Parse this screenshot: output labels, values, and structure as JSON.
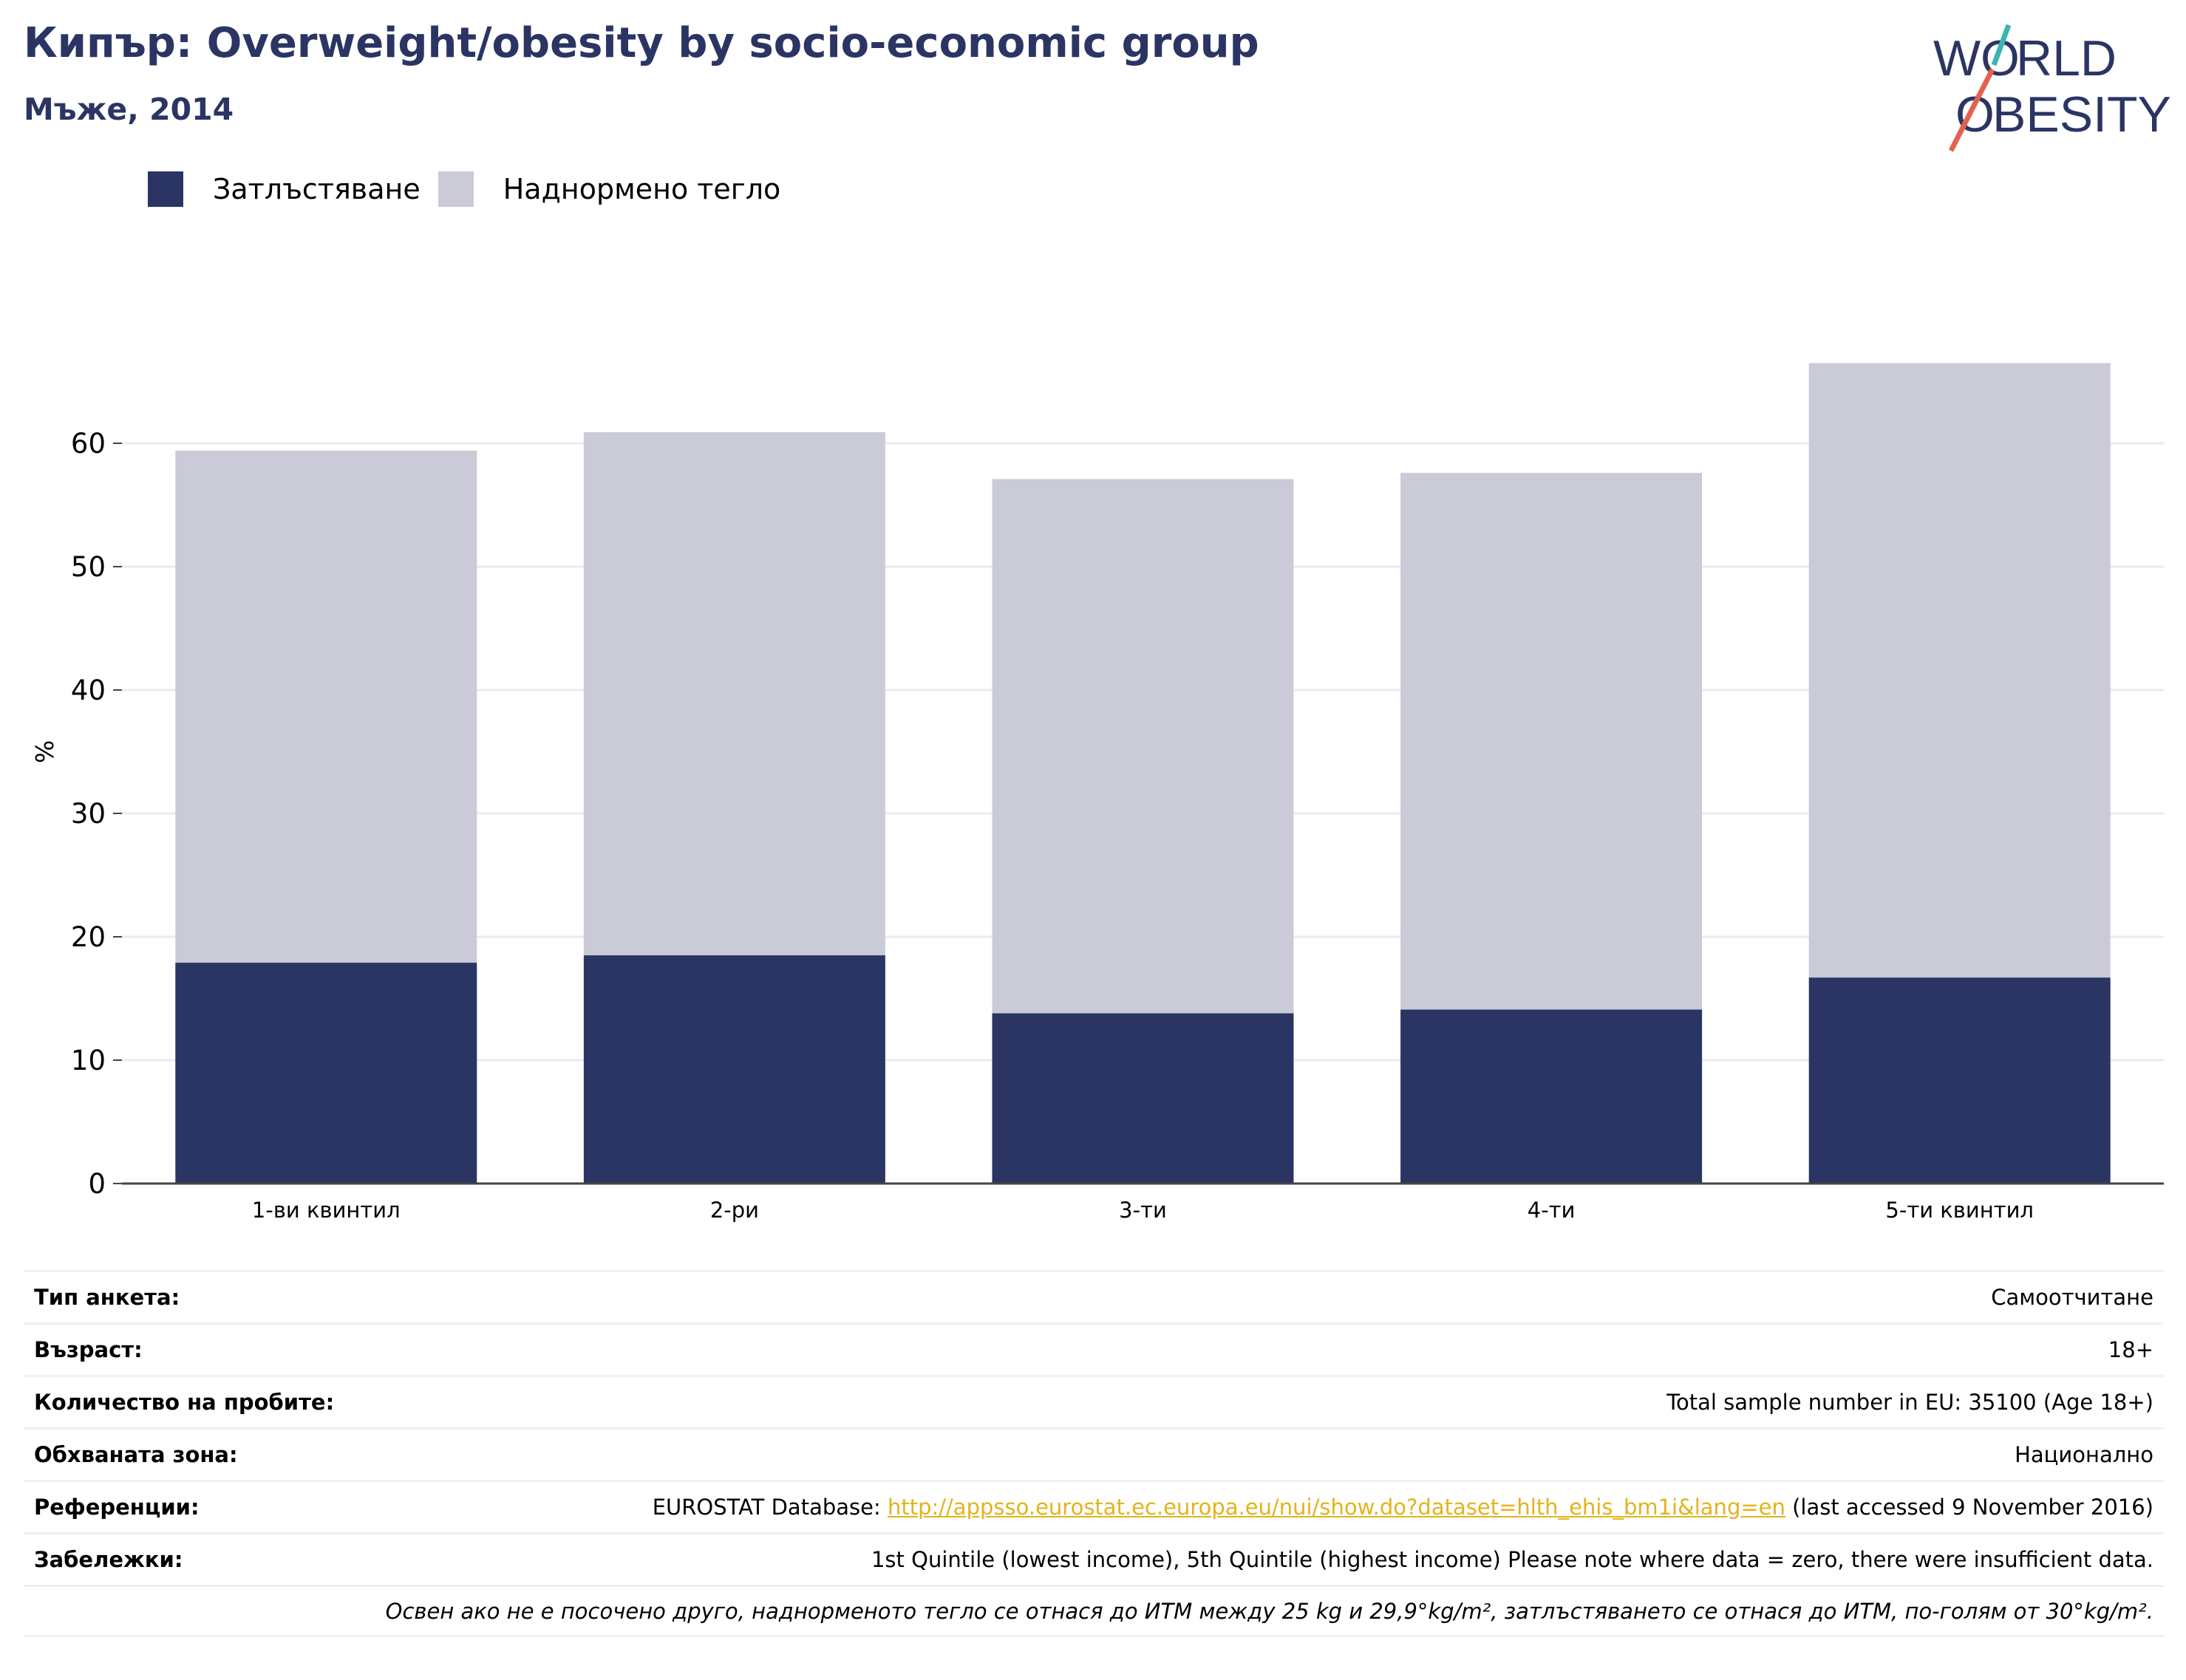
{
  "header": {
    "title": "Кипър: Overweight/obesity by socio-economic group",
    "subtitle": "Мъже, 2014"
  },
  "logo": {
    "line1": "WORLD",
    "line2": "OBESITY"
  },
  "colors": {
    "obesity": "#2b3564",
    "overweight": "#cacbd7",
    "accent_teal": "#3ab3b3",
    "accent_red": "#e2624f",
    "link": "#e3b31b"
  },
  "chart_data": {
    "type": "bar",
    "stacked": true,
    "categories": [
      "1-ви квинтил",
      "2-ри",
      "3-ти",
      "4-ти",
      "5-ти квинтил"
    ],
    "series": [
      {
        "name": "Затлъстяване",
        "values": [
          17.9,
          18.5,
          13.8,
          14.1,
          16.7
        ]
      },
      {
        "name": "Наднормено тегло",
        "values": [
          41.5,
          42.4,
          43.3,
          43.5,
          49.8
        ]
      }
    ],
    "totals": [
      59.4,
      60.9,
      57.1,
      57.6,
      66.5
    ],
    "ylabel": "%",
    "yticks": [
      0,
      10,
      20,
      30,
      40,
      50,
      60
    ],
    "ylim": [
      0,
      70
    ],
    "grid": true,
    "legend": "top-left"
  },
  "meta": {
    "rows": [
      {
        "label": "Тип анкета:",
        "value": "Самоотчитане"
      },
      {
        "label": "Възраст:",
        "value": "18+"
      },
      {
        "label": "Количество на пробите:",
        "value": "Total sample number in EU: 35100 (Age 18+)"
      },
      {
        "label": "Обхваната зона:",
        "value": "Национално"
      }
    ],
    "references": {
      "label": "Референции:",
      "prefix": "EUROSTAT Database: ",
      "link": "http://appsso.eurostat.ec.europa.eu/nui/show.do?dataset=hlth_ehis_bm1i&lang=en",
      "suffix": " (last accessed 9 November 2016)"
    },
    "notes": {
      "label": "Забележки:",
      "value": "1st Quintile (lowest income), 5th Quintile (highest income) Please note where data = zero, there were insufficient data."
    },
    "footnote": "Освен ако не е посочено друго, наднорменото тегло се отнася до ИТМ между 25 kg и 29,9°kg/m², затлъстяването се отнася до ИТМ, по-голям от 30°kg/m²."
  }
}
